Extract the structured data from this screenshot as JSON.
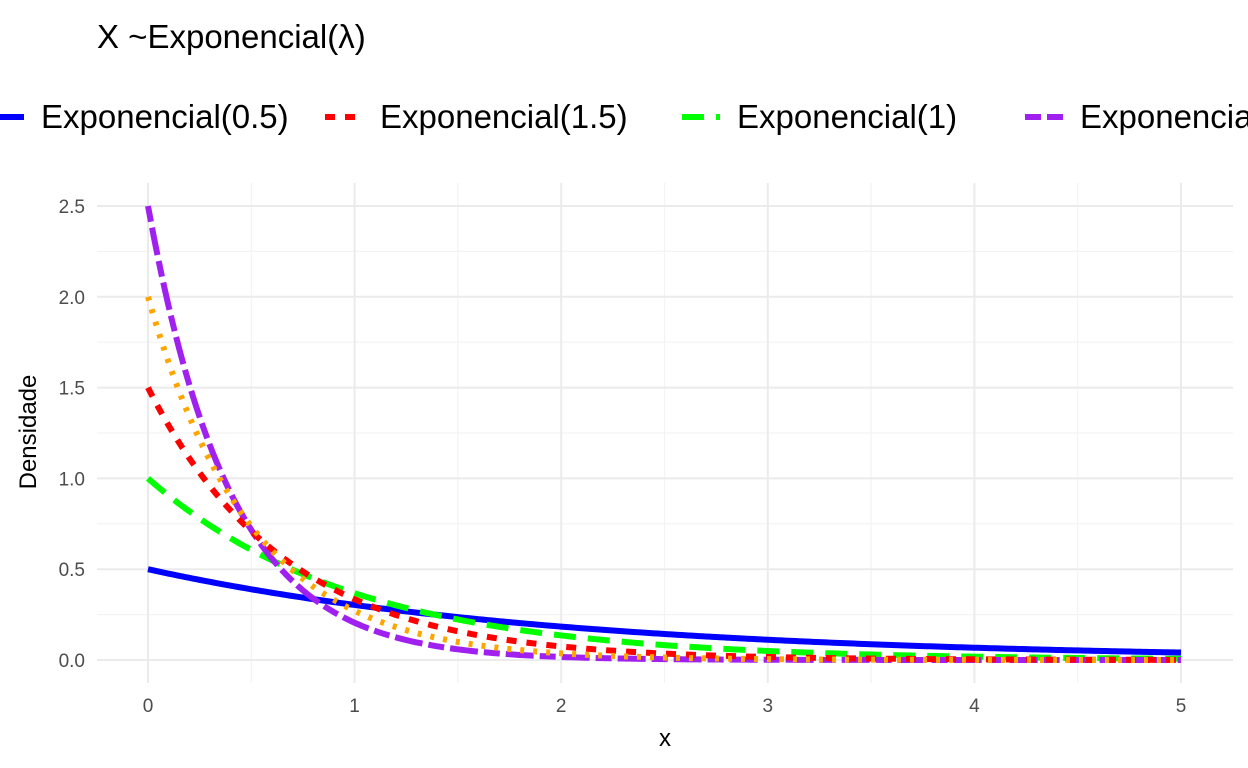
{
  "chart_data": {
    "type": "line",
    "title": "X ~Exponencial(λ)",
    "xlabel": "x",
    "ylabel": "Densidade",
    "xlim": [
      0,
      5
    ],
    "ylim": [
      0,
      2.5
    ],
    "x_ticks": [
      0,
      1,
      2,
      3,
      4,
      5
    ],
    "y_ticks": [
      "0.0",
      "0.5",
      "1.0",
      "1.5",
      "2.0",
      "2.5"
    ],
    "grid": true,
    "legend_position": "top",
    "x": [
      0,
      0.25,
      0.5,
      0.75,
      1,
      1.5,
      2,
      2.5,
      3,
      3.5,
      4,
      4.5,
      5
    ],
    "series": [
      {
        "name": "Exponencial(0.5)",
        "rate": 0.5,
        "color": "#0000ff",
        "dash": "solid",
        "values": [
          0.5,
          0.441,
          0.389,
          0.344,
          0.303,
          0.236,
          0.184,
          0.143,
          0.112,
          0.087,
          0.068,
          0.053,
          0.041
        ]
      },
      {
        "name": "Exponencial(1.5)",
        "rate": 1.5,
        "color": "#ff0000",
        "dash": "dashed",
        "values": [
          1.5,
          1.031,
          0.709,
          0.487,
          0.335,
          0.158,
          0.075,
          0.035,
          0.017,
          0.008,
          0.004,
          0.002,
          0.001
        ]
      },
      {
        "name": "Exponencial(1)",
        "rate": 1,
        "color": "#00ff00",
        "dash": "longdash",
        "values": [
          1.0,
          0.779,
          0.607,
          0.472,
          0.368,
          0.223,
          0.135,
          0.082,
          0.05,
          0.03,
          0.018,
          0.011,
          0.007
        ]
      },
      {
        "name": "Exponencial",
        "rate": 2.5,
        "color": "#a020f0",
        "dash": "twodash",
        "values": [
          2.5,
          1.338,
          0.716,
          0.383,
          0.205,
          0.059,
          0.017,
          0.005,
          0.001,
          0.0,
          0.0,
          0.0,
          0.0
        ]
      },
      {
        "name": "",
        "rate": 2,
        "color": "#ffa500",
        "dash": "dotted",
        "values": [
          2.0,
          1.213,
          0.736,
          0.446,
          0.271,
          0.1,
          0.037,
          0.013,
          0.005,
          0.002,
          0.001,
          0.0,
          0.0
        ]
      }
    ]
  }
}
